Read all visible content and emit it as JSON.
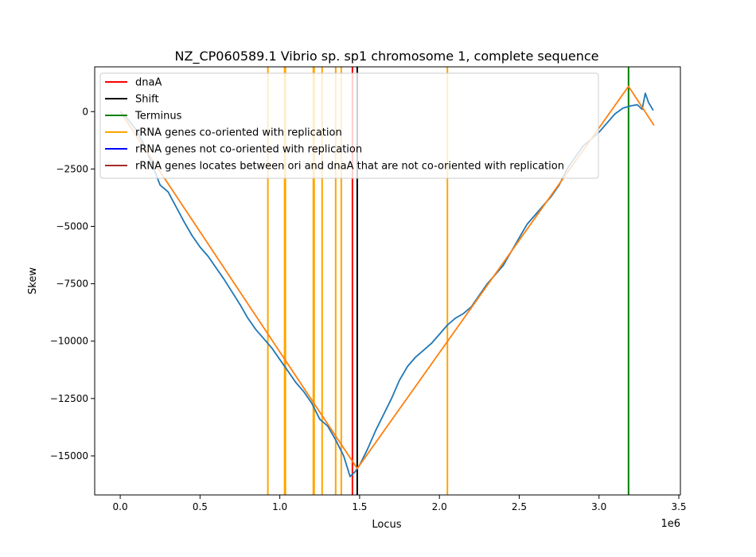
{
  "chart_data": {
    "type": "line",
    "title": "NZ_CP060589.1 Vibrio sp. sp1 chromosome 1, complete sequence",
    "xlabel": "Locus",
    "ylabel": "Skew",
    "x_offset_label": "1e6",
    "xlim": [
      -160000,
      3510000
    ],
    "ylim": [
      -16700,
      1950
    ],
    "x_ticks": [
      0,
      500000,
      1000000,
      1500000,
      2000000,
      2500000,
      3000000,
      3500000
    ],
    "x_tick_labels": [
      "0.0",
      "0.5",
      "1.0",
      "1.5",
      "2.0",
      "2.5",
      "3.0",
      "3.5"
    ],
    "y_ticks": [
      0,
      -2500,
      -5000,
      -7500,
      -10000,
      -12500,
      -15000
    ],
    "y_tick_labels": [
      "0",
      "−2500",
      "−5000",
      "−7500",
      "−10000",
      "−12500",
      "−15000"
    ],
    "grid": false,
    "legend_position": "upper-left",
    "legend": [
      {
        "label": "dnaA",
        "color": "#ff0000"
      },
      {
        "label": "Shift",
        "color": "#000000"
      },
      {
        "label": "Terminus",
        "color": "#008000"
      },
      {
        "label": "rRNA genes co-oriented with replication",
        "color": "#ffa500"
      },
      {
        "label": "rRNA genes not co-oriented with replication",
        "color": "#0000ff"
      },
      {
        "label": "rRNA genes locates between ori and dnaA that are not co-oriented with replication",
        "color": "#a52a2a"
      }
    ],
    "vertical_lines": [
      {
        "kind": "rRNA genes co-oriented with replication",
        "color": "#ffa500",
        "x": [
          925000,
          1030000,
          1035000,
          1210000,
          1215000,
          1265000,
          1350000,
          1385000,
          2050000
        ]
      },
      {
        "kind": "dnaA",
        "color": "#ff0000",
        "x": [
          1455000
        ]
      },
      {
        "kind": "Shift",
        "color": "#000000",
        "x": [
          1485000
        ]
      },
      {
        "kind": "Terminus",
        "color": "#008000",
        "x": [
          3185000
        ]
      }
    ],
    "series": [
      {
        "name": "skew",
        "color": "#1f77b4",
        "points": [
          [
            0,
            0
          ],
          [
            50000,
            -350
          ],
          [
            100000,
            -800
          ],
          [
            150000,
            -1450
          ],
          [
            200000,
            -2300
          ],
          [
            250000,
            -3200
          ],
          [
            300000,
            -3500
          ],
          [
            350000,
            -4150
          ],
          [
            400000,
            -4800
          ],
          [
            450000,
            -5400
          ],
          [
            500000,
            -5900
          ],
          [
            550000,
            -6300
          ],
          [
            600000,
            -6800
          ],
          [
            650000,
            -7300
          ],
          [
            700000,
            -7850
          ],
          [
            750000,
            -8400
          ],
          [
            800000,
            -9000
          ],
          [
            850000,
            -9500
          ],
          [
            900000,
            -9900
          ],
          [
            950000,
            -10300
          ],
          [
            1000000,
            -10800
          ],
          [
            1050000,
            -11300
          ],
          [
            1100000,
            -11800
          ],
          [
            1150000,
            -12200
          ],
          [
            1200000,
            -12700
          ],
          [
            1250000,
            -13400
          ],
          [
            1300000,
            -13700
          ],
          [
            1350000,
            -14300
          ],
          [
            1400000,
            -15000
          ],
          [
            1440000,
            -15900
          ],
          [
            1470000,
            -15700
          ],
          [
            1500000,
            -15400
          ],
          [
            1550000,
            -14700
          ],
          [
            1600000,
            -13900
          ],
          [
            1650000,
            -13200
          ],
          [
            1700000,
            -12500
          ],
          [
            1750000,
            -11700
          ],
          [
            1800000,
            -11100
          ],
          [
            1850000,
            -10700
          ],
          [
            1900000,
            -10400
          ],
          [
            1950000,
            -10100
          ],
          [
            2000000,
            -9700
          ],
          [
            2050000,
            -9300
          ],
          [
            2100000,
            -9000
          ],
          [
            2150000,
            -8800
          ],
          [
            2200000,
            -8500
          ],
          [
            2250000,
            -8000
          ],
          [
            2300000,
            -7500
          ],
          [
            2350000,
            -7100
          ],
          [
            2400000,
            -6700
          ],
          [
            2450000,
            -6100
          ],
          [
            2500000,
            -5500
          ],
          [
            2550000,
            -4900
          ],
          [
            2600000,
            -4500
          ],
          [
            2650000,
            -4100
          ],
          [
            2700000,
            -3700
          ],
          [
            2750000,
            -3200
          ],
          [
            2800000,
            -2500
          ],
          [
            2850000,
            -2000
          ],
          [
            2900000,
            -1500
          ],
          [
            2950000,
            -1200
          ],
          [
            3000000,
            -900
          ],
          [
            3050000,
            -500
          ],
          [
            3100000,
            -100
          ],
          [
            3150000,
            150
          ],
          [
            3200000,
            250
          ],
          [
            3240000,
            300
          ],
          [
            3270000,
            100
          ],
          [
            3290000,
            800
          ],
          [
            3310000,
            400
          ],
          [
            3340000,
            50
          ]
        ]
      },
      {
        "name": "fit",
        "color": "#ff7f0e",
        "points": [
          [
            0,
            0
          ],
          [
            1485000,
            -15550
          ],
          [
            3185000,
            1100
          ],
          [
            3345000,
            -600
          ]
        ]
      }
    ]
  }
}
